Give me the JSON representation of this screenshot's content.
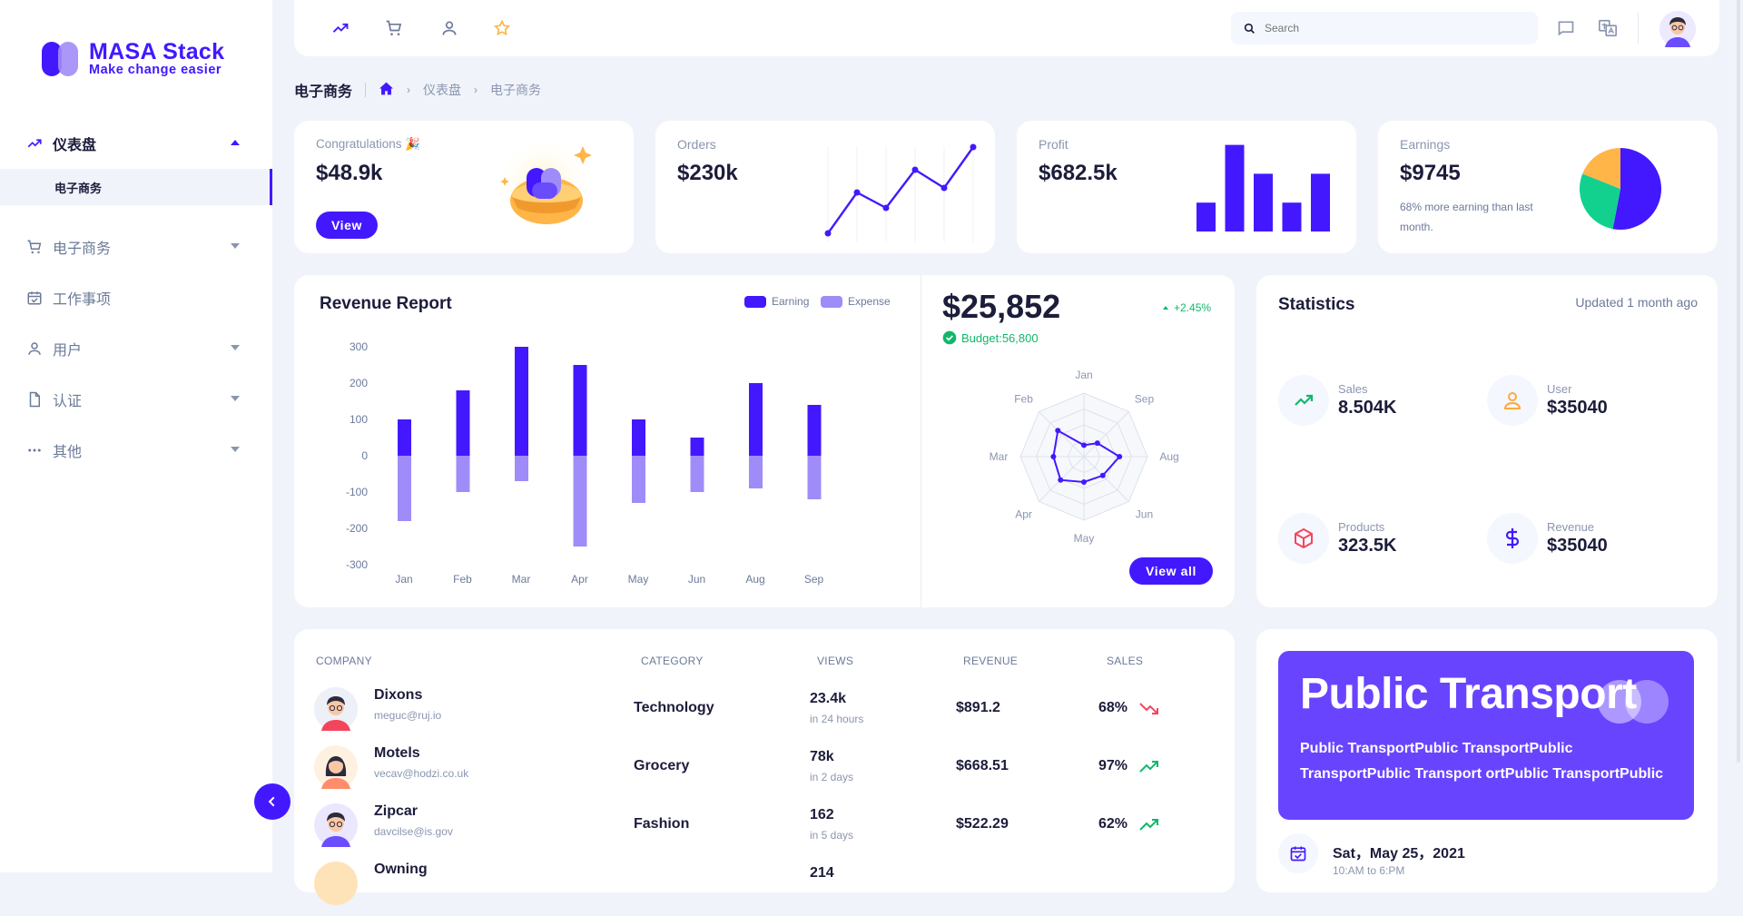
{
  "brand": {
    "title": "MASA Stack",
    "subtitle": "Make change easier",
    "accent": "#4318ff"
  },
  "sidebar": {
    "items": [
      {
        "label": "仪表盘",
        "icon": "trending-up-icon",
        "active": true
      },
      {
        "label": "电子商务",
        "icon": "cart-icon"
      },
      {
        "label": "工作事项",
        "icon": "calendar-check-icon"
      },
      {
        "label": "用户",
        "icon": "user-icon"
      },
      {
        "label": "认证",
        "icon": "file-icon"
      },
      {
        "label": "其他",
        "icon": "more-icon"
      }
    ],
    "sub_active": "电子商务"
  },
  "topbar": {
    "icons": [
      "trending-up-icon",
      "cart-icon",
      "user-icon",
      "star-icon",
      "chat-icon",
      "translate-icon"
    ],
    "search_placeholder": "Search"
  },
  "breadcrumb": {
    "page_title": "电子商务",
    "items": [
      "仪表盘",
      "电子商务"
    ]
  },
  "kpis": {
    "congrats": {
      "label": "Congratulations 🎉",
      "value": "$48.9k",
      "button": "View"
    },
    "orders": {
      "label": "Orders",
      "value": "$230k",
      "spark": [
        10,
        55,
        38,
        80,
        60,
        105
      ]
    },
    "profit": {
      "label": "Profit",
      "value": "$682.5k",
      "bars": [
        30,
        90,
        60,
        30,
        60
      ]
    },
    "earnings": {
      "label": "Earnings",
      "value": "$9745",
      "note": "68% more earning than last month.",
      "pie": [
        {
          "value": 0.53,
          "color": "#4318ff"
        },
        {
          "value": 0.28,
          "color": "#12d18e"
        },
        {
          "value": 0.19,
          "color": "#ffb547"
        }
      ]
    }
  },
  "revenue": {
    "title": "Revenue Report",
    "legend": [
      {
        "name": "Earning",
        "color": "#4318ff"
      },
      {
        "name": "Expense",
        "color": "#a08cf8"
      }
    ]
  },
  "chart_data": [
    {
      "type": "bar",
      "title": "Revenue Report",
      "categories": [
        "Jan",
        "Feb",
        "Mar",
        "Apr",
        "May",
        "Jun",
        "Aug",
        "Sep"
      ],
      "series": [
        {
          "name": "Earning",
          "values": [
            100,
            180,
            300,
            250,
            100,
            50,
            200,
            140
          ]
        },
        {
          "name": "Expense",
          "values": [
            -180,
            -100,
            -70,
            -250,
            -130,
            -100,
            -90,
            -120
          ]
        }
      ],
      "yticks": [
        300,
        200,
        100,
        0,
        -100,
        -200,
        -300
      ],
      "ylim": [
        -300,
        300
      ]
    },
    {
      "type": "radar",
      "categories": [
        "Jan",
        "Sep",
        "Aug",
        "Jun",
        "May",
        "Apr",
        "Mar",
        "Feb"
      ],
      "values": [
        18,
        30,
        56,
        42,
        40,
        52,
        48,
        58
      ],
      "rmax": 100
    }
  ],
  "budget": {
    "amount": "$25,852",
    "change": "+2.45%",
    "budget_label": "Budget:56,800",
    "button": "View all"
  },
  "statistics": {
    "title": "Statistics",
    "updated": "Updated 1 month ago",
    "items": [
      {
        "label": "Sales",
        "value": "8.504K",
        "icon": "trending-up-icon",
        "color": "#12b76a"
      },
      {
        "label": "User",
        "value": "$35040",
        "icon": "user-icon",
        "color": "#ffa940"
      },
      {
        "label": "Products",
        "value": "323.5K",
        "icon": "box-icon",
        "color": "#f5455c"
      },
      {
        "label": "Revenue",
        "value": "$35040",
        "icon": "dollar-icon",
        "color": "#4318ff"
      }
    ]
  },
  "table": {
    "headers": [
      "COMPANY",
      "CATEGORY",
      "VIEWS",
      "REVENUE",
      "SALES"
    ],
    "rows": [
      {
        "name": "Dixons",
        "email": "meguc@ruj.io",
        "category": "Technology",
        "views": "23.4k",
        "views_sub": "in 24 hours",
        "revenue": "$891.2",
        "sales": "68%",
        "trend": "down"
      },
      {
        "name": "Motels",
        "email": "vecav@hodzi.co.uk",
        "category": "Grocery",
        "views": "78k",
        "views_sub": "in 2 days",
        "revenue": "$668.51",
        "sales": "97%",
        "trend": "up"
      },
      {
        "name": "Zipcar",
        "email": "davcilse@is.gov",
        "category": "Fashion",
        "views": "162",
        "views_sub": "in 5 days",
        "revenue": "$522.29",
        "sales": "62%",
        "trend": "up"
      },
      {
        "name": "Owning",
        "email": "",
        "category": "",
        "views": "214",
        "views_sub": "",
        "revenue": "",
        "sales": "",
        "trend": ""
      }
    ]
  },
  "promo": {
    "title": "Public Transport",
    "body": "Public TransportPublic TransportPublic TransportPublic Transport ortPublic TransportPublic"
  },
  "schedule": {
    "date": "Sat，May 25，2021",
    "time": "10:AM to 6:PM"
  }
}
